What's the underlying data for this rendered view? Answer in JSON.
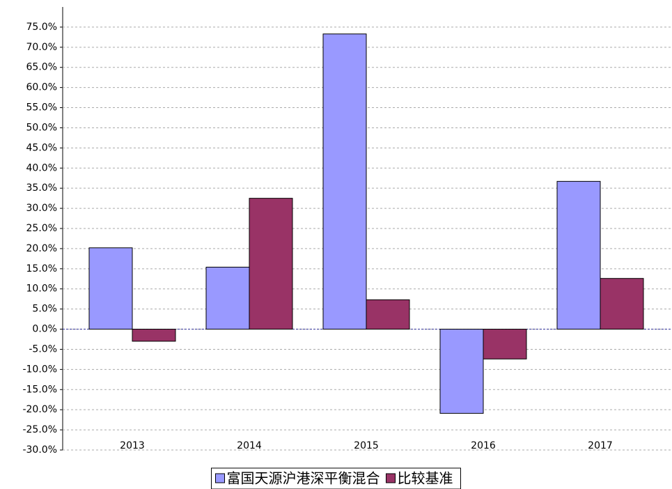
{
  "chart_data": {
    "type": "bar",
    "categories": [
      "2013",
      "2014",
      "2015",
      "2016",
      "2017"
    ],
    "series": [
      {
        "name": "富国天源沪港深平衡混合",
        "color": "#9999ff",
        "values": [
          20.2,
          15.4,
          73.3,
          -20.9,
          36.7
        ]
      },
      {
        "name": "比较基准",
        "color": "#993366",
        "values": [
          -3.0,
          32.5,
          7.3,
          -7.4,
          12.6
        ]
      }
    ],
    "ylim": [
      -30,
      80
    ],
    "yticks": [
      {
        "value": -30,
        "label": "-30.0%"
      },
      {
        "value": -25,
        "label": "-25.0%"
      },
      {
        "value": -20,
        "label": "-20.0%"
      },
      {
        "value": -15,
        "label": "-15.0%"
      },
      {
        "value": -10,
        "label": "-10.0%"
      },
      {
        "value": -5,
        "label": "-5.0%"
      },
      {
        "value": 0,
        "label": "0.0%"
      },
      {
        "value": 5,
        "label": "5.0%"
      },
      {
        "value": 10,
        "label": "10.0%"
      },
      {
        "value": 15,
        "label": "15.0%"
      },
      {
        "value": 20,
        "label": "20.0%"
      },
      {
        "value": 25,
        "label": "25.0%"
      },
      {
        "value": 30,
        "label": "30.0%"
      },
      {
        "value": 35,
        "label": "35.0%"
      },
      {
        "value": 40,
        "label": "40.0%"
      },
      {
        "value": 45,
        "label": "45.0%"
      },
      {
        "value": 50,
        "label": "50.0%"
      },
      {
        "value": 55,
        "label": "55.0%"
      },
      {
        "value": 60,
        "label": "60.0%"
      },
      {
        "value": 65,
        "label": "65.0%"
      },
      {
        "value": 70,
        "label": "70.0%"
      },
      {
        "value": 75,
        "label": "75.0%"
      }
    ],
    "grid": true,
    "legend": "bottom"
  }
}
